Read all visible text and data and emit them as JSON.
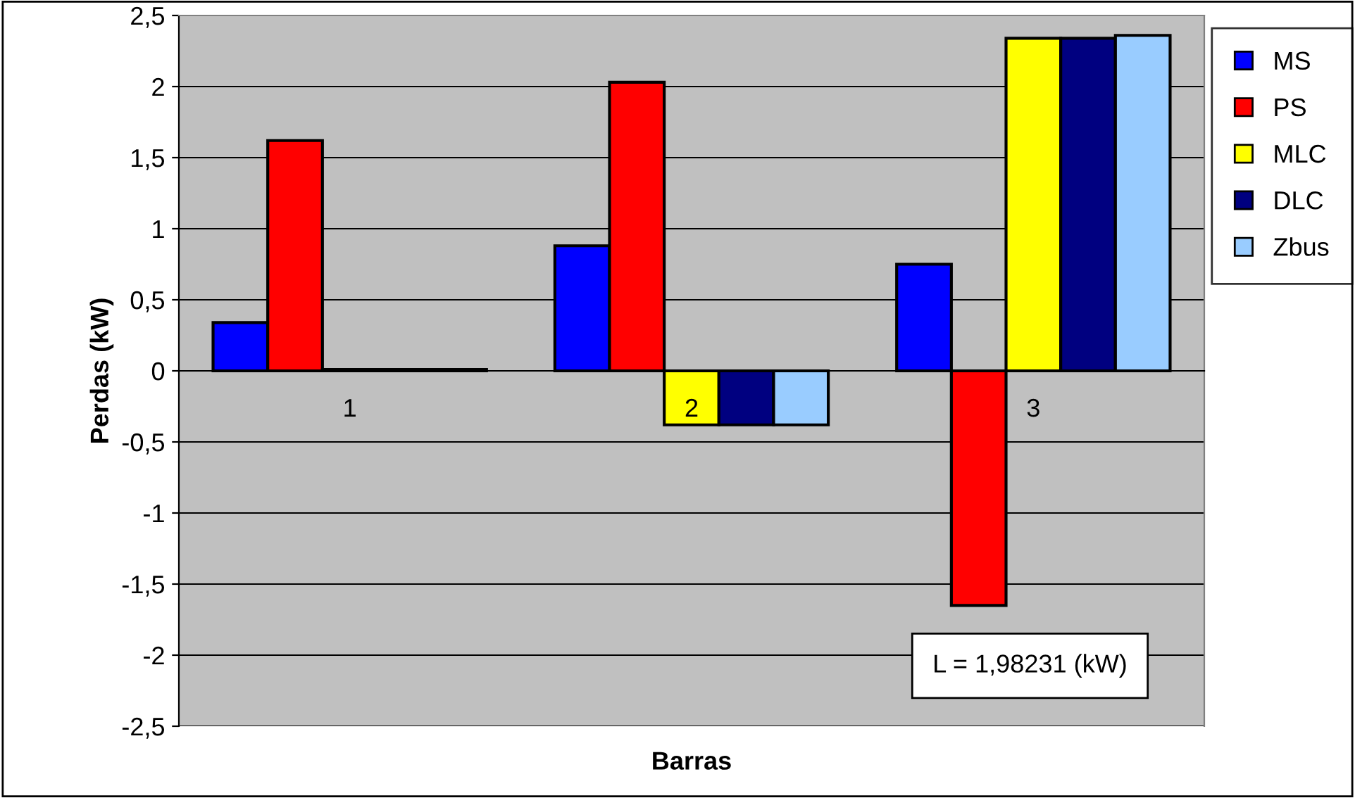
{
  "chart_data": {
    "type": "bar",
    "xlabel": "Barras",
    "ylabel": "Perdas (kW)",
    "categories": [
      "1",
      "2",
      "3"
    ],
    "series": [
      {
        "name": "MS",
        "color": "#0000ff",
        "values": [
          0.34,
          0.88,
          0.75
        ]
      },
      {
        "name": "PS",
        "color": "#ff0000",
        "values": [
          1.62,
          2.03,
          -1.65
        ]
      },
      {
        "name": "MLC",
        "color": "#ffff00",
        "values": [
          0.01,
          -0.38,
          2.34
        ]
      },
      {
        "name": "DLC",
        "color": "#000080",
        "values": [
          0.01,
          -0.38,
          2.34
        ]
      },
      {
        "name": "Zbus",
        "color": "#99ccff",
        "values": [
          0.01,
          -0.38,
          2.36
        ]
      }
    ],
    "ylim": [
      -2.5,
      2.5
    ],
    "yticks": [
      {
        "value": -2.5,
        "label": "-2,5"
      },
      {
        "value": -2,
        "label": "-2"
      },
      {
        "value": -1.5,
        "label": "-1,5"
      },
      {
        "value": -1,
        "label": "-1"
      },
      {
        "value": -0.5,
        "label": "-0,5"
      },
      {
        "value": 0,
        "label": "0"
      },
      {
        "value": 0.5,
        "label": "0,5"
      },
      {
        "value": 1,
        "label": "1"
      },
      {
        "value": 1.5,
        "label": "1,5"
      },
      {
        "value": 2,
        "label": "2"
      },
      {
        "value": 2.5,
        "label": "2,5"
      }
    ],
    "grid": "y",
    "legend": "right",
    "annotations": [
      "L = 1,98231 (kW)"
    ]
  }
}
